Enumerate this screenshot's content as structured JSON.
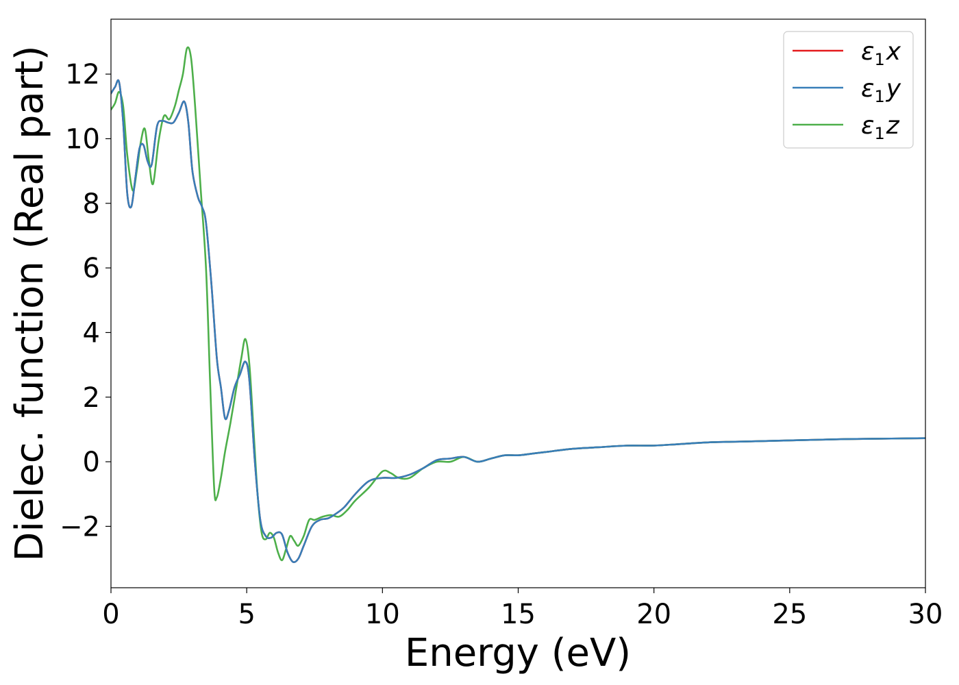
{
  "chart_data": {
    "type": "line",
    "title": "",
    "xlabel": "Energy (eV)",
    "ylabel": "Dielec. function (Real part)",
    "xlim": [
      0,
      30
    ],
    "ylim": [
      -3.9,
      13.7
    ],
    "xticks": [
      0,
      5,
      10,
      15,
      20,
      25,
      30
    ],
    "xtick_labels": [
      "0",
      "5",
      "10",
      "15",
      "20",
      "25",
      "30"
    ],
    "yticks": [
      -2,
      0,
      2,
      4,
      6,
      8,
      10,
      12
    ],
    "ytick_labels": [
      "−2",
      "0",
      "2",
      "4",
      "6",
      "8",
      "10",
      "12"
    ],
    "grid": false,
    "legend_position": "top-right",
    "colors": {
      "x": "#e41a1c",
      "y": "#377eb8",
      "z": "#4daf4a"
    },
    "series": [
      {
        "key": "x",
        "legend": {
          "symbol": "ε",
          "sub": "1",
          "comp": "x"
        },
        "x": [
          0,
          0.15,
          0.3,
          0.45,
          0.6,
          0.75,
          0.9,
          1.05,
          1.2,
          1.35,
          1.5,
          1.7,
          1.9,
          2.1,
          2.3,
          2.5,
          2.7,
          2.85,
          3.0,
          3.2,
          3.35,
          3.5,
          3.7,
          3.9,
          4.05,
          4.2,
          4.35,
          4.55,
          4.75,
          4.95,
          5.1,
          5.3,
          5.5,
          5.7,
          5.9,
          6.1,
          6.3,
          6.5,
          6.7,
          6.9,
          7.1,
          7.4,
          7.7,
          8.0,
          8.3,
          8.6,
          9.0,
          9.5,
          10.0,
          10.5,
          11.0,
          11.5,
          12.0,
          12.5,
          13.0,
          13.5,
          14.0,
          14.5,
          15.0,
          15.5,
          16.0,
          17.0,
          18.0,
          19.0,
          20.0,
          21.0,
          22.0,
          23.0,
          24.0,
          25.0,
          26.0,
          27.0,
          28.0,
          29.0,
          30.0
        ],
        "values": [
          11.4,
          11.6,
          11.75,
          10.5,
          8.3,
          7.9,
          8.8,
          9.7,
          9.8,
          9.3,
          9.2,
          10.4,
          10.55,
          10.5,
          10.5,
          10.8,
          11.15,
          10.5,
          9.0,
          8.2,
          7.9,
          7.4,
          5.5,
          3.2,
          2.3,
          1.35,
          1.6,
          2.3,
          2.7,
          3.1,
          2.5,
          0.0,
          -1.8,
          -2.3,
          -2.35,
          -2.2,
          -2.25,
          -2.8,
          -3.1,
          -3.0,
          -2.6,
          -2.0,
          -1.8,
          -1.75,
          -1.6,
          -1.4,
          -1.0,
          -0.6,
          -0.5,
          -0.5,
          -0.4,
          -0.2,
          0.05,
          0.1,
          0.15,
          0.0,
          0.1,
          0.2,
          0.2,
          0.25,
          0.3,
          0.4,
          0.45,
          0.5,
          0.5,
          0.55,
          0.6,
          0.62,
          0.64,
          0.66,
          0.68,
          0.7,
          0.71,
          0.72,
          0.73
        ]
      },
      {
        "key": "y",
        "legend": {
          "symbol": "ε",
          "sub": "1",
          "comp": "y"
        },
        "x": [
          0,
          0.15,
          0.3,
          0.45,
          0.6,
          0.75,
          0.9,
          1.05,
          1.2,
          1.35,
          1.5,
          1.7,
          1.9,
          2.1,
          2.3,
          2.5,
          2.7,
          2.85,
          3.0,
          3.2,
          3.35,
          3.5,
          3.7,
          3.9,
          4.05,
          4.2,
          4.35,
          4.55,
          4.75,
          4.95,
          5.1,
          5.3,
          5.5,
          5.7,
          5.9,
          6.1,
          6.3,
          6.5,
          6.7,
          6.9,
          7.1,
          7.4,
          7.7,
          8.0,
          8.3,
          8.6,
          9.0,
          9.5,
          10.0,
          10.5,
          11.0,
          11.5,
          12.0,
          12.5,
          13.0,
          13.5,
          14.0,
          14.5,
          15.0,
          15.5,
          16.0,
          17.0,
          18.0,
          19.0,
          20.0,
          21.0,
          22.0,
          23.0,
          24.0,
          25.0,
          26.0,
          27.0,
          28.0,
          29.0,
          30.0
        ],
        "values": [
          11.4,
          11.6,
          11.75,
          10.5,
          8.3,
          7.9,
          8.8,
          9.7,
          9.8,
          9.3,
          9.2,
          10.4,
          10.55,
          10.5,
          10.5,
          10.8,
          11.15,
          10.5,
          9.0,
          8.2,
          7.9,
          7.4,
          5.5,
          3.2,
          2.3,
          1.35,
          1.6,
          2.3,
          2.7,
          3.1,
          2.5,
          0.0,
          -1.8,
          -2.3,
          -2.35,
          -2.2,
          -2.25,
          -2.8,
          -3.1,
          -3.0,
          -2.6,
          -2.0,
          -1.8,
          -1.75,
          -1.6,
          -1.4,
          -1.0,
          -0.6,
          -0.5,
          -0.5,
          -0.4,
          -0.2,
          0.05,
          0.1,
          0.15,
          0.0,
          0.1,
          0.2,
          0.2,
          0.25,
          0.3,
          0.4,
          0.45,
          0.5,
          0.5,
          0.55,
          0.6,
          0.62,
          0.64,
          0.66,
          0.68,
          0.7,
          0.71,
          0.72,
          0.73
        ]
      },
      {
        "key": "z",
        "legend": {
          "symbol": "ε",
          "sub": "1",
          "comp": "z"
        },
        "x": [
          0,
          0.15,
          0.3,
          0.45,
          0.6,
          0.8,
          0.95,
          1.1,
          1.25,
          1.4,
          1.55,
          1.75,
          1.95,
          2.15,
          2.35,
          2.5,
          2.65,
          2.8,
          2.95,
          3.1,
          3.3,
          3.5,
          3.65,
          3.8,
          3.9,
          4.05,
          4.2,
          4.4,
          4.6,
          4.8,
          4.95,
          5.1,
          5.25,
          5.4,
          5.55,
          5.7,
          5.85,
          6.0,
          6.15,
          6.3,
          6.45,
          6.6,
          6.75,
          6.9,
          7.1,
          7.3,
          7.5,
          7.8,
          8.1,
          8.4,
          8.7,
          9.0,
          9.5,
          10.0,
          10.3,
          10.6,
          11.0,
          11.5,
          12.0,
          12.5,
          13.0,
          13.5,
          14.0,
          14.5,
          15.0,
          15.5,
          16.0,
          17.0,
          18.0,
          19.0,
          20.0,
          21.0,
          22.0,
          23.0,
          24.0,
          25.0,
          26.0,
          27.0,
          28.0,
          29.0,
          30.0
        ],
        "values": [
          10.9,
          11.1,
          11.45,
          11.0,
          9.5,
          8.4,
          9.0,
          9.9,
          10.3,
          9.3,
          8.6,
          9.9,
          10.7,
          10.6,
          11.0,
          11.5,
          12.0,
          12.8,
          12.5,
          11.0,
          8.5,
          6.0,
          2.5,
          -0.8,
          -1.1,
          -0.5,
          0.3,
          1.2,
          2.2,
          3.2,
          3.8,
          3.0,
          1.0,
          -1.0,
          -2.2,
          -2.4,
          -2.2,
          -2.35,
          -2.8,
          -3.05,
          -2.7,
          -2.3,
          -2.45,
          -2.6,
          -2.3,
          -1.8,
          -1.8,
          -1.7,
          -1.65,
          -1.7,
          -1.5,
          -1.2,
          -0.8,
          -0.3,
          -0.35,
          -0.5,
          -0.5,
          -0.2,
          0.0,
          0.0,
          0.15,
          0.0,
          0.1,
          0.2,
          0.2,
          0.25,
          0.3,
          0.4,
          0.45,
          0.5,
          0.5,
          0.55,
          0.6,
          0.62,
          0.64,
          0.66,
          0.68,
          0.7,
          0.71,
          0.72,
          0.73
        ]
      }
    ]
  }
}
